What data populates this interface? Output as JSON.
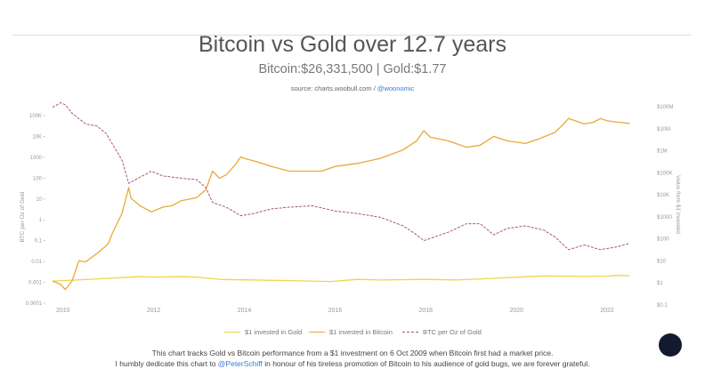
{
  "title": "Bitcoin vs Gold over 12.7 years",
  "subtitle": "Bitcoin:$26,331,500 | Gold:$1.77",
  "source": {
    "prefix": "source: charts.woobull.com / ",
    "handle": "@woonomic"
  },
  "legend": [
    {
      "label": "$1 invested in Gold",
      "color": "#f2d34a",
      "style": "solid"
    },
    {
      "label": "$1 invested in Bitcoin",
      "color": "#e8a93a",
      "style": "solid"
    },
    {
      "label": "BTC per Oz of Gold",
      "color": "#a8577a",
      "style": "dashed"
    }
  ],
  "footer": {
    "line1": "This chart tracks Gold vs Bitcoin performance from a $1 investment on 6 Oct 2009 when Bitcoin first had a market price.",
    "line2_pre": "I humbly dedicate this chart to ",
    "line2_handle": "@PeterSchiff",
    "line2_post": " in honour of his tireless promotion of Bitcoin to his audience of gold bugs, we are forever grateful."
  },
  "chart_data": {
    "type": "line",
    "x_axis": {
      "ticks": [
        "2010",
        "2012",
        "2014",
        "2016",
        "2018",
        "2020",
        "2022"
      ],
      "range": [
        2009.75,
        2022.55
      ]
    },
    "y_left": {
      "label": "BTC per Oz of Gold",
      "scale": "log",
      "ticks": [
        "100K",
        "10K",
        "1000",
        "100",
        "10",
        "1",
        "0.1",
        "0.01",
        "0.001",
        "0.0001"
      ],
      "range": [
        0.0001,
        100000
      ]
    },
    "y_right": {
      "label": "Value from $1 invested",
      "scale": "log",
      "ticks": [
        "$100M",
        "$10M",
        "$1M",
        "$100K",
        "$10K",
        "$1000",
        "$100",
        "$10",
        "$1",
        "$0.1"
      ],
      "range": [
        0.1,
        100000000
      ]
    },
    "series": [
      {
        "name": "$1 invested in Gold",
        "axis": "right",
        "color": "#f2d34a",
        "points": [
          [
            2009.77,
            1.0
          ],
          [
            2010.0,
            1.05
          ],
          [
            2010.5,
            1.18
          ],
          [
            2011.0,
            1.35
          ],
          [
            2011.67,
            1.6
          ],
          [
            2012.0,
            1.55
          ],
          [
            2012.67,
            1.6
          ],
          [
            2013.0,
            1.5
          ],
          [
            2013.5,
            1.18
          ],
          [
            2014.0,
            1.15
          ],
          [
            2015.0,
            1.05
          ],
          [
            2015.9,
            0.95
          ],
          [
            2016.5,
            1.2
          ],
          [
            2017.0,
            1.12
          ],
          [
            2018.0,
            1.2
          ],
          [
            2018.7,
            1.12
          ],
          [
            2019.5,
            1.35
          ],
          [
            2020.6,
            1.75
          ],
          [
            2021.0,
            1.7
          ],
          [
            2021.5,
            1.65
          ],
          [
            2022.0,
            1.7
          ],
          [
            2022.2,
            1.85
          ],
          [
            2022.5,
            1.77
          ]
        ]
      },
      {
        "name": "$1 invested in Bitcoin",
        "axis": "right",
        "color": "#e8a93a",
        "points": [
          [
            2009.77,
            1.0
          ],
          [
            2009.95,
            0.7
          ],
          [
            2010.05,
            0.4
          ],
          [
            2010.2,
            1.0
          ],
          [
            2010.35,
            9
          ],
          [
            2010.5,
            8
          ],
          [
            2010.75,
            20
          ],
          [
            2010.95,
            45
          ],
          [
            2011.0,
            60
          ],
          [
            2011.1,
            200
          ],
          [
            2011.3,
            1500
          ],
          [
            2011.45,
            25000
          ],
          [
            2011.5,
            8000
          ],
          [
            2011.7,
            3500
          ],
          [
            2011.95,
            1800
          ],
          [
            2012.2,
            3000
          ],
          [
            2012.4,
            3500
          ],
          [
            2012.6,
            6000
          ],
          [
            2012.95,
            8500
          ],
          [
            2013.15,
            20000
          ],
          [
            2013.3,
            150000
          ],
          [
            2013.45,
            70000
          ],
          [
            2013.6,
            100000
          ],
          [
            2013.8,
            300000
          ],
          [
            2013.92,
            700000
          ],
          [
            2014.0,
            600000
          ],
          [
            2014.3,
            400000
          ],
          [
            2014.6,
            250000
          ],
          [
            2015.0,
            150000
          ],
          [
            2015.3,
            150000
          ],
          [
            2015.7,
            150000
          ],
          [
            2016.0,
            250000
          ],
          [
            2016.5,
            350000
          ],
          [
            2017.0,
            600000
          ],
          [
            2017.5,
            1500000
          ],
          [
            2017.8,
            4000000
          ],
          [
            2017.96,
            12000000
          ],
          [
            2018.1,
            6000000
          ],
          [
            2018.5,
            4000000
          ],
          [
            2018.9,
            2000000
          ],
          [
            2019.2,
            2500000
          ],
          [
            2019.5,
            6500000
          ],
          [
            2019.8,
            4000000
          ],
          [
            2020.2,
            3000000
          ],
          [
            2020.5,
            5000000
          ],
          [
            2020.85,
            10000000
          ],
          [
            2021.0,
            20000000
          ],
          [
            2021.15,
            45000000
          ],
          [
            2021.3,
            35000000
          ],
          [
            2021.5,
            25000000
          ],
          [
            2021.7,
            30000000
          ],
          [
            2021.85,
            45000000
          ],
          [
            2022.0,
            35000000
          ],
          [
            2022.25,
            30000000
          ],
          [
            2022.5,
            26331500
          ]
        ]
      },
      {
        "name": "BTC per Oz of Gold",
        "axis": "left",
        "color": "#a8577a",
        "points": [
          [
            2009.77,
            150000
          ],
          [
            2009.95,
            250000
          ],
          [
            2010.05,
            200000
          ],
          [
            2010.2,
            80000
          ],
          [
            2010.5,
            25000
          ],
          [
            2010.75,
            20000
          ],
          [
            2010.95,
            9000
          ],
          [
            2011.0,
            6000
          ],
          [
            2011.3,
            500
          ],
          [
            2011.45,
            40
          ],
          [
            2011.6,
            60
          ],
          [
            2011.8,
            100
          ],
          [
            2011.95,
            150
          ],
          [
            2012.2,
            90
          ],
          [
            2012.6,
            70
          ],
          [
            2012.95,
            60
          ],
          [
            2013.15,
            25
          ],
          [
            2013.3,
            5
          ],
          [
            2013.6,
            3
          ],
          [
            2013.92,
            1.2
          ],
          [
            2014.2,
            1.5
          ],
          [
            2014.6,
            2.5
          ],
          [
            2015.0,
            3
          ],
          [
            2015.5,
            3.5
          ],
          [
            2016.0,
            2
          ],
          [
            2016.5,
            1.5
          ],
          [
            2017.0,
            1.0
          ],
          [
            2017.5,
            0.4
          ],
          [
            2017.8,
            0.15
          ],
          [
            2017.96,
            0.08
          ],
          [
            2018.5,
            0.2
          ],
          [
            2018.9,
            0.5
          ],
          [
            2019.2,
            0.5
          ],
          [
            2019.5,
            0.15
          ],
          [
            2019.8,
            0.3
          ],
          [
            2020.2,
            0.4
          ],
          [
            2020.6,
            0.25
          ],
          [
            2020.85,
            0.12
          ],
          [
            2021.15,
            0.03
          ],
          [
            2021.5,
            0.05
          ],
          [
            2021.85,
            0.03
          ],
          [
            2022.2,
            0.04
          ],
          [
            2022.5,
            0.06
          ]
        ]
      }
    ],
    "grid": false,
    "legend_position": "bottom-center"
  }
}
